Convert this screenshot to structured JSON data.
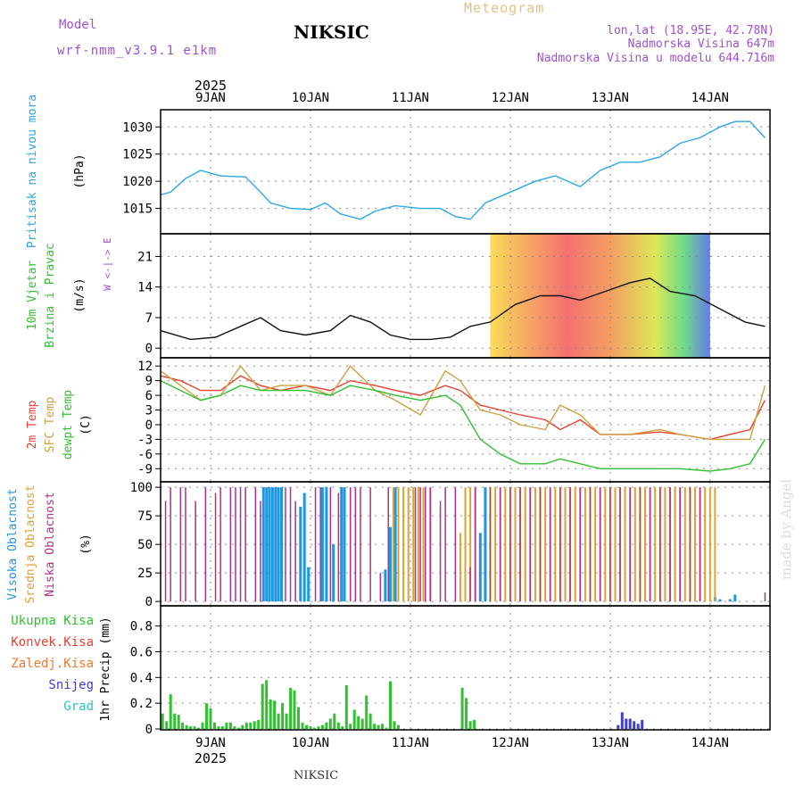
{
  "header": {
    "model_label": "Model",
    "model_name": "wrf-nmm_v3.9.1 e1km",
    "station": "NIKSIC",
    "product": "Meteogram",
    "lonlat": "lon,lat (18.95E, 42.78N)",
    "elevation": "Nadmorska Visina 647m",
    "model_elevation": "Nadmorska Visina u modelu 644.716m"
  },
  "footer": {
    "station": "NIKSIC",
    "credit": "made by Angel"
  },
  "colors": {
    "pressure": "#2aa8e6",
    "temp2m": "#e84030",
    "sfc_temp": "#d0a040",
    "dewpoint": "#30c030",
    "cloud_high": "#1e96e0",
    "cloud_mid": "#e0a030",
    "cloud_low": "#b0308a",
    "precip_total": "#30c030",
    "precip_conv": "#e84030",
    "precip_snow": "#4040d0"
  },
  "chart_data": {
    "type": "meteogram",
    "x_axis": {
      "year": "2025",
      "day_labels": [
        "9JAN",
        "10JAN",
        "11JAN",
        "12JAN",
        "13JAN",
        "14JAN"
      ],
      "day_positions": [
        0.5,
        1.5,
        2.5,
        3.5,
        4.5,
        5.5
      ],
      "range_days": [
        0,
        6.1
      ]
    },
    "panels": [
      {
        "id": "pressure",
        "type": "line",
        "ylabel": [
          "Pritisak na nivou mora",
          "(hPa)"
        ],
        "yticks": [
          1015,
          1020,
          1025,
          1030
        ],
        "ylim": [
          1010.5,
          1033
        ],
        "series": [
          {
            "x": [
              0,
              0.1,
              0.25,
              0.4,
              0.6,
              0.85,
              1.0,
              1.1,
              1.3,
              1.5,
              1.65,
              1.8,
              2.0,
              2.15,
              2.35,
              2.6,
              2.8,
              2.95,
              3.1,
              3.25,
              3.5,
              3.75,
              3.95,
              4.2,
              4.4,
              4.6,
              4.8,
              5.0,
              5.2,
              5.4,
              5.6,
              5.75,
              5.9,
              6.05
            ],
            "y": [
              1017.5,
              1018,
              1020.5,
              1022,
              1021,
              1020.8,
              1018,
              1016,
              1015,
              1014.8,
              1016,
              1014,
              1013,
              1014.5,
              1015.5,
              1015,
              1015,
              1013.5,
              1013,
              1016,
              1018,
              1020,
              1021,
              1019,
              1022,
              1023.5,
              1023.5,
              1024.5,
              1027,
              1028,
              1030,
              1031,
              1031,
              1028
            ]
          }
        ]
      },
      {
        "id": "wind",
        "type": "line",
        "ylabel": [
          "10m Vjetar",
          "Brzina i Pravac",
          "(m/s)"
        ],
        "direction_legend": [
          "W",
          "<-|->",
          "E"
        ],
        "yticks": [
          0,
          7,
          14,
          21
        ],
        "ylim": [
          -2,
          26
        ],
        "series": [
          {
            "name": "speed",
            "x": [
              0,
              0.3,
              0.55,
              0.8,
              1.0,
              1.2,
              1.45,
              1.7,
              1.9,
              2.1,
              2.3,
              2.5,
              2.7,
              2.9,
              3.1,
              3.3,
              3.55,
              3.8,
              4.0,
              4.2,
              4.45,
              4.7,
              4.9,
              5.1,
              5.35,
              5.6,
              5.85,
              6.05
            ],
            "y": [
              4,
              2,
              2.5,
              5,
              7,
              4,
              3,
              4,
              7.5,
              6,
              3,
              2,
              2,
              2.5,
              5,
              6,
              10,
              12,
              12,
              11,
              13,
              15,
              16,
              13,
              12,
              9,
              6,
              5
            ]
          }
        ]
      },
      {
        "id": "temperature",
        "type": "line",
        "ylabel": [
          "2m Temp",
          "SFC Temp",
          "dewpt Temp",
          "(C)"
        ],
        "yticks": [
          -9,
          -6,
          -3,
          0,
          3,
          6,
          9,
          12
        ],
        "ylim": [
          -11.5,
          13.5
        ],
        "series": [
          {
            "name": "2m Temp",
            "x": [
              0,
              0.2,
              0.4,
              0.6,
              0.8,
              1.0,
              1.2,
              1.45,
              1.7,
              1.9,
              2.15,
              2.35,
              2.6,
              2.85,
              3.0,
              3.2,
              3.4,
              3.6,
              3.85,
              4.0,
              4.2,
              4.4,
              4.7,
              5.0,
              5.2,
              5.5,
              5.7,
              5.9,
              6.05
            ],
            "y": [
              10,
              9,
              7,
              7,
              10,
              8,
              7,
              8,
              7,
              9,
              8,
              7,
              6,
              8,
              7,
              4,
              3,
              2,
              1,
              -1,
              1,
              -2,
              -2,
              -1.5,
              -2,
              -3,
              -2,
              -1,
              5
            ]
          },
          {
            "name": "SFC Temp",
            "x": [
              0,
              0.2,
              0.4,
              0.6,
              0.8,
              1.0,
              1.2,
              1.45,
              1.7,
              1.9,
              2.15,
              2.35,
              2.6,
              2.85,
              3.0,
              3.2,
              3.4,
              3.6,
              3.85,
              4.0,
              4.2,
              4.4,
              4.7,
              5.0,
              5.2,
              5.5,
              5.7,
              5.9,
              6.05
            ],
            "y": [
              11,
              8,
              5,
              6,
              12,
              7,
              8,
              8,
              6,
              12,
              7,
              5,
              2,
              11,
              9,
              3,
              2,
              0,
              -1,
              4,
              2,
              -2,
              -2,
              -1,
              -2,
              -3,
              -3,
              -3,
              8
            ]
          },
          {
            "name": "dewpt Temp",
            "x": [
              0,
              0.2,
              0.4,
              0.6,
              0.8,
              1.0,
              1.2,
              1.45,
              1.7,
              1.9,
              2.15,
              2.35,
              2.6,
              2.85,
              3.0,
              3.2,
              3.4,
              3.6,
              3.85,
              4.0,
              4.2,
              4.4,
              4.7,
              5.0,
              5.2,
              5.5,
              5.7,
              5.9,
              6.05
            ],
            "y": [
              9,
              7,
              5,
              6,
              8,
              7,
              7,
              7,
              6,
              8,
              7,
              6,
              5,
              6,
              4,
              -3,
              -6,
              -8,
              -8,
              -7,
              -8,
              -9,
              -9,
              -9,
              -9,
              -9.5,
              -9,
              -8,
              -3
            ]
          }
        ]
      },
      {
        "id": "clouds",
        "type": "bar",
        "ylabel": [
          "Visoka Oblacnost",
          "Srednja Oblacnost",
          "Niska Oblacnost",
          "(%)"
        ],
        "yticks": [
          0,
          25,
          50,
          75,
          100
        ],
        "ylim": [
          -3,
          104
        ],
        "series": [
          {
            "name": "Visoka Oblacnost",
            "x": [
              1.03,
              1.06,
              1.09,
              1.12,
              1.15,
              1.18,
              1.21,
              1.4,
              1.44,
              1.48,
              1.62,
              1.66,
              1.73,
              1.81,
              1.84,
              2.25,
              2.3,
              2.35,
              3.2,
              3.25,
              5.55,
              5.6,
              5.7,
              5.75
            ],
            "y": [
              100,
              100,
              100,
              100,
              100,
              100,
              100,
              83,
              95,
              30,
              100,
              100,
              50,
              100,
              100,
              28,
              65,
              100,
              60,
              100,
              4,
              2,
              2,
              6
            ]
          },
          {
            "name": "Srednja Oblacnost",
            "x": [
              2.33,
              2.38,
              2.43,
              2.48,
              2.53,
              2.58,
              2.63,
              2.7,
              3.0,
              3.05,
              3.1,
              3.15,
              3.3,
              3.35,
              3.4,
              3.45,
              3.5,
              3.55,
              3.6,
              3.65,
              3.7,
              3.75,
              3.8,
              3.85,
              3.9,
              3.95,
              4.0,
              4.05,
              4.1,
              4.15,
              4.2,
              4.25,
              4.3,
              4.35,
              4.4,
              4.45,
              4.5,
              4.55,
              4.6,
              4.65,
              4.7,
              4.75,
              4.8,
              4.85,
              4.9,
              4.95,
              5.0,
              5.05,
              5.1,
              5.15,
              5.2,
              5.25,
              5.3,
              5.35,
              5.4,
              5.45,
              5.5,
              5.55
            ],
            "y": [
              100,
              100,
              100,
              100,
              100,
              100,
              100,
              100,
              60,
              100,
              100,
              100,
              100,
              100,
              100,
              100,
              100,
              100,
              100,
              100,
              100,
              100,
              100,
              100,
              100,
              100,
              100,
              100,
              100,
              100,
              100,
              100,
              100,
              100,
              100,
              100,
              100,
              100,
              100,
              100,
              100,
              100,
              100,
              100,
              100,
              100,
              100,
              100,
              100,
              100,
              100,
              100,
              100,
              100,
              100,
              100,
              100,
              100
            ]
          },
          {
            "name": "Niska Oblacnost",
            "x": [
              0.05,
              0.1,
              0.2,
              0.25,
              0.35,
              0.45,
              0.55,
              0.6,
              0.7,
              0.75,
              0.8,
              0.85,
              0.95,
              1.0,
              1.25,
              1.3,
              1.35,
              1.55,
              1.6,
              1.7,
              1.78,
              1.9,
              1.95,
              2.0,
              2.1,
              2.2,
              2.28,
              2.55,
              2.6,
              2.65,
              2.7,
              2.8,
              2.85,
              2.95,
              3.1,
              3.15,
              3.3,
              3.4,
              3.5,
              3.6,
              3.7,
              3.8,
              3.9,
              4.0,
              4.1,
              4.2,
              4.3,
              4.4,
              4.5,
              4.6,
              4.7,
              4.8,
              4.9,
              5.0,
              5.1,
              5.2,
              5.3,
              5.4,
              6.05
            ],
            "y": [
              88,
              100,
              100,
              100,
              88,
              100,
              95,
              100,
              100,
              100,
              100,
              100,
              100,
              88,
              100,
              100,
              88,
              100,
              100,
              100,
              95,
              100,
              100,
              100,
              100,
              25,
              100,
              100,
              100,
              100,
              100,
              88,
              100,
              100,
              30,
              100,
              100,
              100,
              100,
              100,
              100,
              100,
              100,
              100,
              100,
              100,
              100,
              100,
              100,
              100,
              100,
              100,
              100,
              100,
              100,
              100,
              100,
              100,
              8
            ]
          }
        ]
      },
      {
        "id": "precip",
        "type": "bar",
        "ylabel": [
          "1hr Precip (mm)"
        ],
        "legend": [
          "Ukupna Kisa",
          "Konvek.Kisa",
          "Zaledj.Kisa",
          "Snijeg",
          "Grad"
        ],
        "yticks": [
          0,
          0.2,
          0.4,
          0.6,
          0.8
        ],
        "ylim": [
          0,
          0.95
        ],
        "series": [
          {
            "name": "Ukupna Kisa",
            "x": [
              0.02,
              0.06,
              0.1,
              0.14,
              0.18,
              0.22,
              0.26,
              0.3,
              0.34,
              0.38,
              0.42,
              0.46,
              0.5,
              0.54,
              0.58,
              0.62,
              0.66,
              0.7,
              0.74,
              0.78,
              0.82,
              0.86,
              0.9,
              0.94,
              0.98,
              1.02,
              1.06,
              1.1,
              1.14,
              1.18,
              1.22,
              1.26,
              1.3,
              1.34,
              1.38,
              1.42,
              1.46,
              1.5,
              1.54,
              1.58,
              1.62,
              1.66,
              1.7,
              1.74,
              1.78,
              1.82,
              1.86,
              1.9,
              1.94,
              1.98,
              2.02,
              2.06,
              2.1,
              2.14,
              2.18,
              2.22,
              2.26,
              2.3,
              2.34,
              2.38,
              3.02,
              3.06,
              3.1,
              3.14
            ],
            "y": [
              0.12,
              0.06,
              0.27,
              0.12,
              0.11,
              0.05,
              0.03,
              0.02,
              0.02,
              0.01,
              0.05,
              0.2,
              0.16,
              0.05,
              0.02,
              0.02,
              0.05,
              0.05,
              0.02,
              0.01,
              0.03,
              0.05,
              0.05,
              0.06,
              0.07,
              0.35,
              0.38,
              0.23,
              0.22,
              0.12,
              0.2,
              0.12,
              0.32,
              0.3,
              0.17,
              0.05,
              0.03,
              0.02,
              0.01,
              0.02,
              0.03,
              0.05,
              0.08,
              0.12,
              0.05,
              0.02,
              0.34,
              0.04,
              0.15,
              0.1,
              0.08,
              0.26,
              0.12,
              0.04,
              0.03,
              0.04,
              0.01,
              0.37,
              0.06,
              0.03,
              0.32,
              0.24,
              0.06,
              0.07
            ]
          },
          {
            "name": "Snijeg",
            "x": [
              4.58,
              4.62,
              4.66,
              4.7,
              4.74,
              4.78,
              4.82
            ],
            "y": [
              0.03,
              0.13,
              0.08,
              0.08,
              0.06,
              0.04,
              0.07
            ]
          }
        ]
      }
    ]
  }
}
